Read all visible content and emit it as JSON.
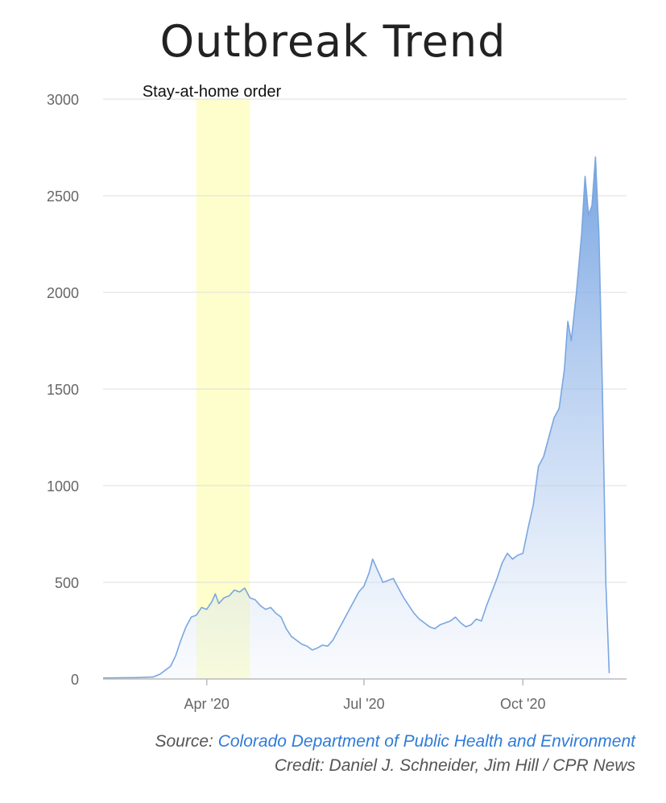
{
  "chart_data": {
    "type": "area",
    "title": "Outbreak Trend",
    "xlabel": "",
    "ylabel": "",
    "ylim": [
      0,
      3000
    ],
    "y_ticks": [
      0,
      500,
      1000,
      1500,
      2000,
      2500,
      3000
    ],
    "x_ticks": [
      {
        "date": "2020-04-01",
        "label": "Apr '20"
      },
      {
        "date": "2020-07-01",
        "label": "Jul '20"
      },
      {
        "date": "2020-10-01",
        "label": "Oct '20"
      }
    ],
    "xlim": [
      "2020-02-01",
      "2020-11-30"
    ],
    "grid": true,
    "color": "#7aa7e0",
    "highlight": {
      "label": "Stay-at-home order",
      "start": "2020-03-26",
      "end": "2020-04-26",
      "color": "#fdfecb"
    },
    "series": [
      {
        "values": [
          [
            "2020-02-01",
            5
          ],
          [
            "2020-02-10",
            6
          ],
          [
            "2020-02-20",
            7
          ],
          [
            "2020-03-01",
            10
          ],
          [
            "2020-03-05",
            25
          ],
          [
            "2020-03-08",
            45
          ],
          [
            "2020-03-11",
            65
          ],
          [
            "2020-03-14",
            120
          ],
          [
            "2020-03-17",
            200
          ],
          [
            "2020-03-20",
            270
          ],
          [
            "2020-03-23",
            320
          ],
          [
            "2020-03-26",
            330
          ],
          [
            "2020-03-29",
            370
          ],
          [
            "2020-04-01",
            360
          ],
          [
            "2020-04-04",
            400
          ],
          [
            "2020-04-06",
            440
          ],
          [
            "2020-04-08",
            390
          ],
          [
            "2020-04-11",
            420
          ],
          [
            "2020-04-14",
            430
          ],
          [
            "2020-04-17",
            460
          ],
          [
            "2020-04-20",
            450
          ],
          [
            "2020-04-23",
            470
          ],
          [
            "2020-04-26",
            420
          ],
          [
            "2020-04-29",
            410
          ],
          [
            "2020-05-02",
            380
          ],
          [
            "2020-05-05",
            360
          ],
          [
            "2020-05-08",
            370
          ],
          [
            "2020-05-11",
            340
          ],
          [
            "2020-05-14",
            320
          ],
          [
            "2020-05-17",
            260
          ],
          [
            "2020-05-20",
            220
          ],
          [
            "2020-05-23",
            200
          ],
          [
            "2020-05-26",
            180
          ],
          [
            "2020-05-29",
            170
          ],
          [
            "2020-06-01",
            150
          ],
          [
            "2020-06-04",
            160
          ],
          [
            "2020-06-07",
            175
          ],
          [
            "2020-06-10",
            170
          ],
          [
            "2020-06-13",
            200
          ],
          [
            "2020-06-16",
            250
          ],
          [
            "2020-06-19",
            300
          ],
          [
            "2020-06-22",
            350
          ],
          [
            "2020-06-25",
            400
          ],
          [
            "2020-06-28",
            450
          ],
          [
            "2020-07-01",
            480
          ],
          [
            "2020-07-04",
            550
          ],
          [
            "2020-07-06",
            620
          ],
          [
            "2020-07-09",
            560
          ],
          [
            "2020-07-12",
            500
          ],
          [
            "2020-07-15",
            510
          ],
          [
            "2020-07-18",
            520
          ],
          [
            "2020-07-21",
            470
          ],
          [
            "2020-07-24",
            420
          ],
          [
            "2020-07-27",
            380
          ],
          [
            "2020-07-30",
            340
          ],
          [
            "2020-08-02",
            310
          ],
          [
            "2020-08-05",
            290
          ],
          [
            "2020-08-08",
            270
          ],
          [
            "2020-08-11",
            260
          ],
          [
            "2020-08-14",
            280
          ],
          [
            "2020-08-17",
            290
          ],
          [
            "2020-08-20",
            300
          ],
          [
            "2020-08-23",
            320
          ],
          [
            "2020-08-26",
            290
          ],
          [
            "2020-08-29",
            270
          ],
          [
            "2020-09-01",
            280
          ],
          [
            "2020-09-04",
            310
          ],
          [
            "2020-09-07",
            300
          ],
          [
            "2020-09-10",
            380
          ],
          [
            "2020-09-13",
            450
          ],
          [
            "2020-09-16",
            520
          ],
          [
            "2020-09-19",
            600
          ],
          [
            "2020-09-22",
            650
          ],
          [
            "2020-09-25",
            620
          ],
          [
            "2020-09-28",
            640
          ],
          [
            "2020-10-01",
            650
          ],
          [
            "2020-10-04",
            780
          ],
          [
            "2020-10-07",
            900
          ],
          [
            "2020-10-10",
            1100
          ],
          [
            "2020-10-13",
            1150
          ],
          [
            "2020-10-16",
            1250
          ],
          [
            "2020-10-19",
            1350
          ],
          [
            "2020-10-22",
            1400
          ],
          [
            "2020-10-25",
            1600
          ],
          [
            "2020-10-27",
            1850
          ],
          [
            "2020-10-29",
            1750
          ],
          [
            "2020-11-01",
            2000
          ],
          [
            "2020-11-04",
            2300
          ],
          [
            "2020-11-06",
            2600
          ],
          [
            "2020-11-08",
            2400
          ],
          [
            "2020-11-10",
            2450
          ],
          [
            "2020-11-12",
            2700
          ],
          [
            "2020-11-14",
            2300
          ],
          [
            "2020-11-16",
            1500
          ],
          [
            "2020-11-18",
            500
          ],
          [
            "2020-11-20",
            30
          ]
        ]
      }
    ]
  },
  "footer": {
    "source_prefix": "Source: ",
    "source_link": "Colorado Department of Public Health and Environment",
    "credit": "Credit: Daniel J. Schneider, Jim Hill / CPR News"
  }
}
